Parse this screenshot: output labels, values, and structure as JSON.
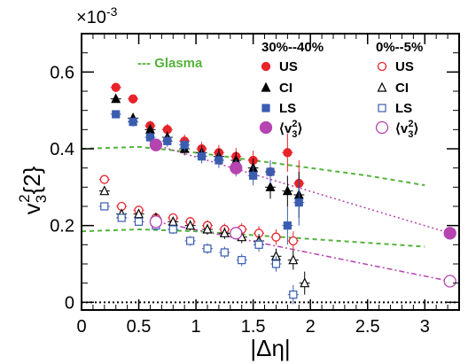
{
  "chart_data": {
    "type": "scatter",
    "title": "",
    "xlabel": "|Δη|",
    "ylabel": "v",
    "ylabel_sup": "2",
    "ylabel_sub": "3",
    "ylabel_tail": "{2}",
    "yscale_label": "×10",
    "yscale_exp": "-3",
    "xlim": [
      0,
      3.3
    ],
    "ylim": [
      -0.02,
      0.7
    ],
    "xticks": [
      "0",
      "0.5",
      "1",
      "1.5",
      "2",
      "2.5",
      "3"
    ],
    "yticks": [
      "0",
      "0.2",
      "0.4",
      "0.6"
    ],
    "xtick_values": [
      0,
      0.5,
      1,
      1.5,
      2,
      2.5,
      3
    ],
    "ytick_values": [
      0,
      0.2,
      0.4,
      0.6
    ],
    "legend": {
      "glasma_label": "--- Glasma",
      "central_header": "30%--40%",
      "peripheral_header": "0%--5%",
      "entries": [
        "US",
        "CI",
        "LS"
      ],
      "avg_label_main": "⟨v",
      "avg_label_sup": "2",
      "avg_label_sub": "3",
      "avg_label_close": "⟩"
    },
    "colors": {
      "US": "#e8232a",
      "CI": "#000000",
      "LS": "#3a5db0",
      "avg": "#b544b0",
      "glasma": "#55b33c"
    },
    "series": [
      {
        "name": "US",
        "group": "30%--40%",
        "marker": "circle-filled",
        "x": [
          0.3,
          0.45,
          0.6,
          0.75,
          0.9,
          1.05,
          1.2,
          1.35,
          1.5,
          1.65,
          1.8,
          1.9
        ],
        "y": [
          0.56,
          0.53,
          0.46,
          0.45,
          0.42,
          0.4,
          0.39,
          0.38,
          0.37,
          0.34,
          0.39,
          0.31
        ],
        "yerr": [
          0.01,
          0.012,
          0.013,
          0.015,
          0.017,
          0.018,
          0.02,
          0.022,
          0.025,
          0.03,
          0.05,
          0.06
        ]
      },
      {
        "name": "CI",
        "group": "30%--40%",
        "marker": "triangle-filled",
        "x": [
          0.3,
          0.45,
          0.6,
          0.75,
          0.9,
          1.05,
          1.2,
          1.35,
          1.5,
          1.65,
          1.8,
          1.9
        ],
        "y": [
          0.53,
          0.48,
          0.45,
          0.43,
          0.4,
          0.39,
          0.38,
          0.37,
          0.35,
          0.3,
          0.29,
          0.28
        ],
        "yerr": [
          0.01,
          0.012,
          0.013,
          0.015,
          0.017,
          0.018,
          0.02,
          0.022,
          0.025,
          0.03,
          0.04,
          0.06
        ]
      },
      {
        "name": "LS",
        "group": "30%--40%",
        "marker": "square-filled",
        "x": [
          0.3,
          0.45,
          0.6,
          0.75,
          0.9,
          1.05,
          1.2,
          1.35,
          1.5,
          1.65,
          1.8,
          1.9
        ],
        "y": [
          0.49,
          0.47,
          0.43,
          0.42,
          0.41,
          0.38,
          0.37,
          0.35,
          0.33,
          0.34,
          0.2,
          0.26
        ],
        "yerr": [
          0.01,
          0.012,
          0.013,
          0.015,
          0.017,
          0.018,
          0.02,
          0.022,
          0.025,
          0.03,
          0.05,
          0.06
        ]
      },
      {
        "name": "US",
        "group": "0%--5%",
        "marker": "circle-open",
        "x": [
          0.2,
          0.35,
          0.5,
          0.65,
          0.8,
          0.95,
          1.1,
          1.25,
          1.4,
          1.55,
          1.7,
          1.85
        ],
        "y": [
          0.32,
          0.25,
          0.24,
          0.22,
          0.22,
          0.21,
          0.2,
          0.19,
          0.19,
          0.18,
          0.17,
          0.16
        ],
        "yerr": [
          0.008,
          0.009,
          0.01,
          0.011,
          0.012,
          0.013,
          0.014,
          0.015,
          0.016,
          0.018,
          0.02,
          0.025
        ]
      },
      {
        "name": "CI",
        "group": "0%--5%",
        "marker": "triangle-open",
        "x": [
          0.2,
          0.35,
          0.5,
          0.65,
          0.8,
          0.95,
          1.1,
          1.25,
          1.4,
          1.55,
          1.7,
          1.85,
          1.95
        ],
        "y": [
          0.29,
          0.23,
          0.23,
          0.22,
          0.21,
          0.2,
          0.19,
          0.18,
          0.17,
          0.16,
          0.12,
          0.11,
          0.05
        ],
        "yerr": [
          0.008,
          0.009,
          0.01,
          0.011,
          0.012,
          0.013,
          0.014,
          0.015,
          0.016,
          0.018,
          0.02,
          0.025,
          0.03
        ]
      },
      {
        "name": "LS",
        "group": "0%--5%",
        "marker": "square-open",
        "x": [
          0.2,
          0.35,
          0.5,
          0.65,
          0.8,
          0.95,
          1.1,
          1.25,
          1.4,
          1.55,
          1.7,
          1.85
        ],
        "y": [
          0.25,
          0.22,
          0.21,
          0.2,
          0.19,
          0.16,
          0.14,
          0.13,
          0.11,
          0.15,
          0.1,
          0.02
        ],
        "yerr": [
          0.008,
          0.009,
          0.01,
          0.011,
          0.012,
          0.013,
          0.014,
          0.015,
          0.016,
          0.018,
          0.02,
          0.025
        ]
      }
    ],
    "average_points": [
      {
        "group": "30%--40%",
        "marker": "circle-filled-large",
        "x": [
          0.65,
          1.35,
          3.22
        ],
        "y": [
          0.41,
          0.35,
          0.18
        ]
      },
      {
        "group": "0%--5%",
        "marker": "circle-open-large",
        "x": [
          0.65,
          1.35,
          3.22
        ],
        "y": [
          0.21,
          0.18,
          0.055
        ]
      }
    ],
    "glasma_curves": [
      {
        "group": "30%--40%",
        "x": [
          0,
          0.5,
          1,
          1.5,
          2,
          2.5,
          3
        ],
        "y": [
          0.4,
          0.405,
          0.39,
          0.37,
          0.35,
          0.33,
          0.305
        ]
      },
      {
        "group": "0%--5%",
        "x": [
          0,
          0.5,
          1,
          1.5,
          2,
          2.5,
          3
        ],
        "y": [
          0.185,
          0.19,
          0.185,
          0.175,
          0.165,
          0.155,
          0.145
        ]
      }
    ],
    "fit_lines": [
      {
        "group": "30%--40%",
        "style": "dotted",
        "x": [
          0.65,
          3.22
        ],
        "y": [
          0.41,
          0.18
        ]
      },
      {
        "group": "0%--5%",
        "style": "dashdot",
        "x": [
          0.65,
          3.22
        ],
        "y": [
          0.21,
          0.055
        ]
      }
    ],
    "zero_line": true
  }
}
